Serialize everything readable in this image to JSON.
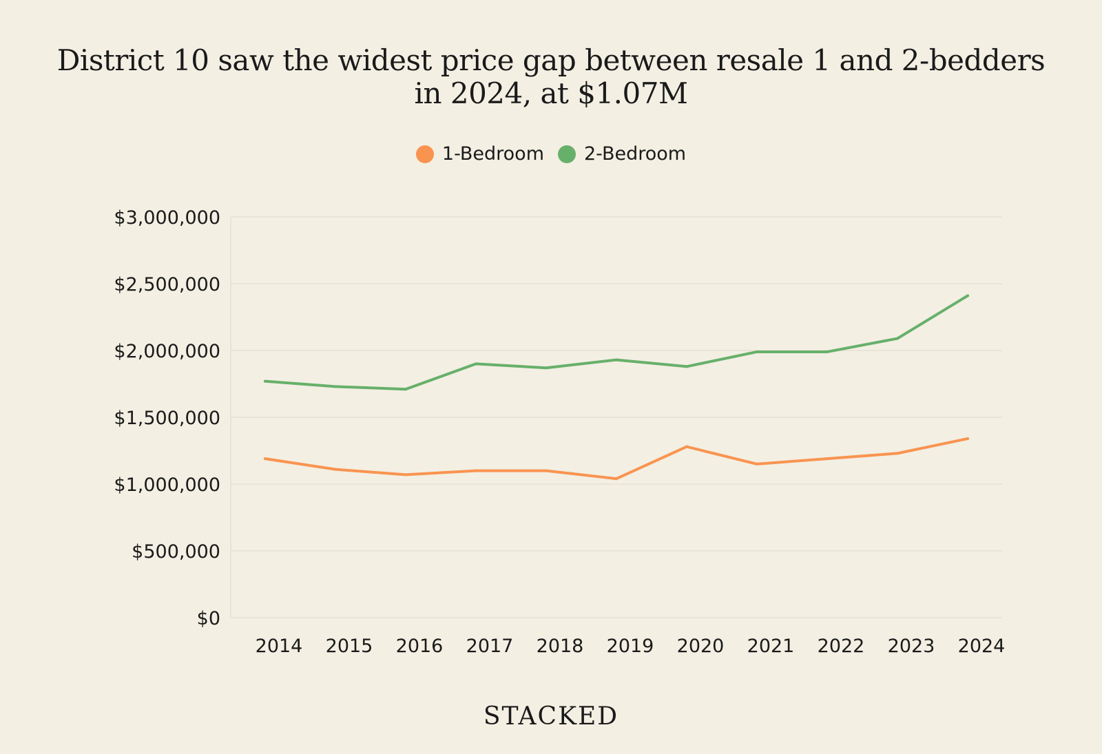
{
  "title": "District 10 saw the widest price gap between resale 1 and 2-bedders in 2024, at $1.07M",
  "brand": "STACKED",
  "chart_data": {
    "type": "line",
    "title": "District 10 saw the widest price gap between resale 1 and 2-bedders in 2024, at $1.07M",
    "xlabel": "",
    "ylabel": "",
    "categories": [
      "2014",
      "2015",
      "2016",
      "2017",
      "2018",
      "2019",
      "2020",
      "2021",
      "2022",
      "2023",
      "2024"
    ],
    "y_ticks": [
      0,
      500000,
      1000000,
      1500000,
      2000000,
      2500000,
      3000000
    ],
    "y_tick_labels": [
      "$0",
      "$500,000",
      "$1,000,000",
      "$1,500,000",
      "$2,000,000",
      "$2,500,000",
      "$3,000,000"
    ],
    "ylim": [
      0,
      3000000
    ],
    "grid": true,
    "legend_position": "top-center",
    "series": [
      {
        "name": "1-Bedroom",
        "color": "#f99450",
        "values": [
          1190000,
          1110000,
          1070000,
          1100000,
          1100000,
          1040000,
          1280000,
          1150000,
          1190000,
          1230000,
          1340000
        ]
      },
      {
        "name": "2-Bedroom",
        "color": "#67b06a",
        "values": [
          1770000,
          1730000,
          1710000,
          1900000,
          1870000,
          1930000,
          1880000,
          1990000,
          1990000,
          2090000,
          2410000
        ]
      }
    ]
  }
}
